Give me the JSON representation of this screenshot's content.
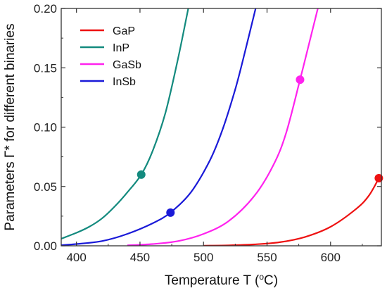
{
  "chart_data": {
    "type": "line",
    "title": "",
    "xlabel_prefix": "Temperature T (",
    "xlabel_sup": "o",
    "xlabel_suffix": "C)",
    "ylabel": "Parameters Γ* for different binaries",
    "xlim": [
      388,
      640
    ],
    "ylim": [
      0,
      0.2
    ],
    "xticks": [
      400,
      450,
      500,
      550,
      600
    ],
    "yticks": [
      0.0,
      0.05,
      0.1,
      0.15,
      0.2
    ],
    "ytick_labels": [
      "0.00",
      "0.05",
      "0.10",
      "0.15",
      "0.20"
    ],
    "grid": false,
    "legend_position": "top-left",
    "series": [
      {
        "name": "GaP",
        "color": "#ee1111",
        "x": [
          500,
          520,
          540,
          560,
          580,
          600,
          620,
          630,
          638
        ],
        "y": [
          0.0001,
          0.0004,
          0.0012,
          0.003,
          0.0075,
          0.016,
          0.031,
          0.042,
          0.057
        ],
        "marker": {
          "x": 638,
          "y": 0.057
        }
      },
      {
        "name": "InP",
        "color": "#138a7e",
        "x": [
          388,
          400,
          410,
          420,
          430,
          440,
          451,
          460,
          470,
          480,
          488
        ],
        "y": [
          0.006,
          0.011,
          0.016,
          0.023,
          0.033,
          0.045,
          0.06,
          0.08,
          0.112,
          0.158,
          0.2
        ],
        "marker": {
          "x": 451,
          "y": 0.06
        }
      },
      {
        "name": "GaSb",
        "color": "#ff22ee",
        "x": [
          440,
          460,
          480,
          500,
          520,
          540,
          555,
          565,
          576,
          583,
          590
        ],
        "y": [
          0.0004,
          0.0015,
          0.004,
          0.01,
          0.021,
          0.042,
          0.068,
          0.095,
          0.14,
          0.17,
          0.2
        ],
        "marker": {
          "x": 576,
          "y": 0.14
        }
      },
      {
        "name": "InSb",
        "color": "#1a1ad8",
        "x": [
          388,
          400,
          420,
          440,
          460,
          474,
          490,
          505,
          515,
          525,
          533,
          541
        ],
        "y": [
          0.0006,
          0.0015,
          0.004,
          0.01,
          0.019,
          0.028,
          0.045,
          0.072,
          0.098,
          0.132,
          0.165,
          0.2
        ],
        "marker": {
          "x": 474,
          "y": 0.028
        }
      }
    ]
  }
}
